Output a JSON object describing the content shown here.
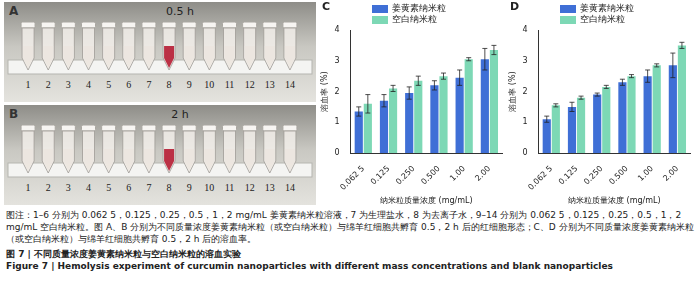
{
  "photos": [
    {
      "panel": "A",
      "time": "0.5 h",
      "tubes": [
        "1",
        "2",
        "3",
        "4",
        "5",
        "6",
        "7",
        "8",
        "9",
        "10",
        "11",
        "12",
        "13",
        "14"
      ],
      "colors": [
        "#ece6df",
        "#ece6df",
        "#ece6df",
        "#ece6df",
        "#ece6df",
        "#ece6df",
        "#ece6df",
        "#b8263c",
        "#ece6df",
        "#ece6df",
        "#ece6df",
        "#ece6df",
        "#ece6df",
        "#ece6df"
      ]
    },
    {
      "panel": "B",
      "time": "2 h",
      "tubes": [
        "1",
        "2",
        "3",
        "4",
        "5",
        "6",
        "7",
        "8",
        "9",
        "10",
        "11",
        "12",
        "13",
        "14"
      ],
      "colors": [
        "#ece6df",
        "#ece6df",
        "#ece6df",
        "#ece6df",
        "#ece6df",
        "#ece6df",
        "#ece6df",
        "#b8263c",
        "#ece6df",
        "#ece6df",
        "#ece6df",
        "#ece6df",
        "#ece6df",
        "#ece6df"
      ]
    }
  ],
  "chart_data": [
    {
      "type": "bar",
      "panel": "C",
      "categories": [
        "0.062 5",
        "0.125",
        "0.250",
        "0.500",
        "1.00",
        "2.00"
      ],
      "series": [
        {
          "name": "姜黄素纳米粒",
          "color": "#3f6fd6",
          "values": [
            1.35,
            1.7,
            1.95,
            2.2,
            2.45,
            3.05
          ],
          "errors": [
            0.15,
            0.2,
            0.2,
            0.15,
            0.25,
            0.35
          ]
        },
        {
          "name": "空白纳米粒",
          "color": "#7dd8b5",
          "values": [
            1.6,
            2.1,
            2.35,
            2.5,
            3.05,
            3.35
          ],
          "errors": [
            0.3,
            0.1,
            0.15,
            0.1,
            0.05,
            0.15
          ]
        }
      ],
      "ylim": [
        0,
        4
      ],
      "yticks": [
        0,
        1,
        2,
        3,
        4
      ],
      "grid": false,
      "legend": "top-left",
      "x_label": "纳米粒质量浓度 (mg/mL)",
      "y_label": "溶血率 (%)"
    },
    {
      "type": "bar",
      "panel": "D",
      "categories": [
        "0.062 5",
        "0.125",
        "0.250",
        "0.500",
        "1.00",
        "2.00"
      ],
      "series": [
        {
          "name": "姜黄素纳米粒",
          "color": "#3f6fd6",
          "values": [
            1.1,
            1.5,
            1.9,
            2.3,
            2.5,
            2.85
          ],
          "errors": [
            0.1,
            0.15,
            0.05,
            0.1,
            0.2,
            0.4
          ]
        },
        {
          "name": "空白纳米粒",
          "color": "#7dd8b5",
          "values": [
            1.55,
            1.8,
            2.15,
            2.5,
            2.85,
            3.5
          ],
          "errors": [
            0.05,
            0.05,
            0.05,
            0.05,
            0.05,
            0.1
          ]
        }
      ],
      "ylim": [
        0,
        4
      ],
      "yticks": [
        0,
        1,
        2,
        3,
        4
      ],
      "grid": false,
      "legend": "top-left",
      "x_label": "纳米粒质量浓度 (mg/mL)",
      "y_label": "溶血率 (%)"
    }
  ],
  "caption": {
    "note": "图注：1–6 分别为 0.062 5，0.125，0.25，0.5，1，2 mg/mL 姜黄素纳米粒溶液，7 为生理盐水，8 为去离子水，9–14 分别为 0.062 5，0.125，0.25，0.5，1，2 mg/mL 空白纳米粒。图 A、B 分别为不同质量浓度姜黄素纳米粒（或空白纳米粒）与绵羊红细胞共孵育 0.5，2 h 后的红细胞形态；C、D 分别为不同质量浓度姜黄素纳米粒（或空白纳米粒）与绵羊红细胞共孵育 0.5，2 h 后的溶血率。",
    "title_zh": "图 7 | 不同质量浓度姜黄素纳米粒与空白纳米粒的溶血实验",
    "title_en": "Figure 7 | Hemolysis experiment of curcumin nanoparticles with different mass concentrations and blank nanoparticles"
  }
}
